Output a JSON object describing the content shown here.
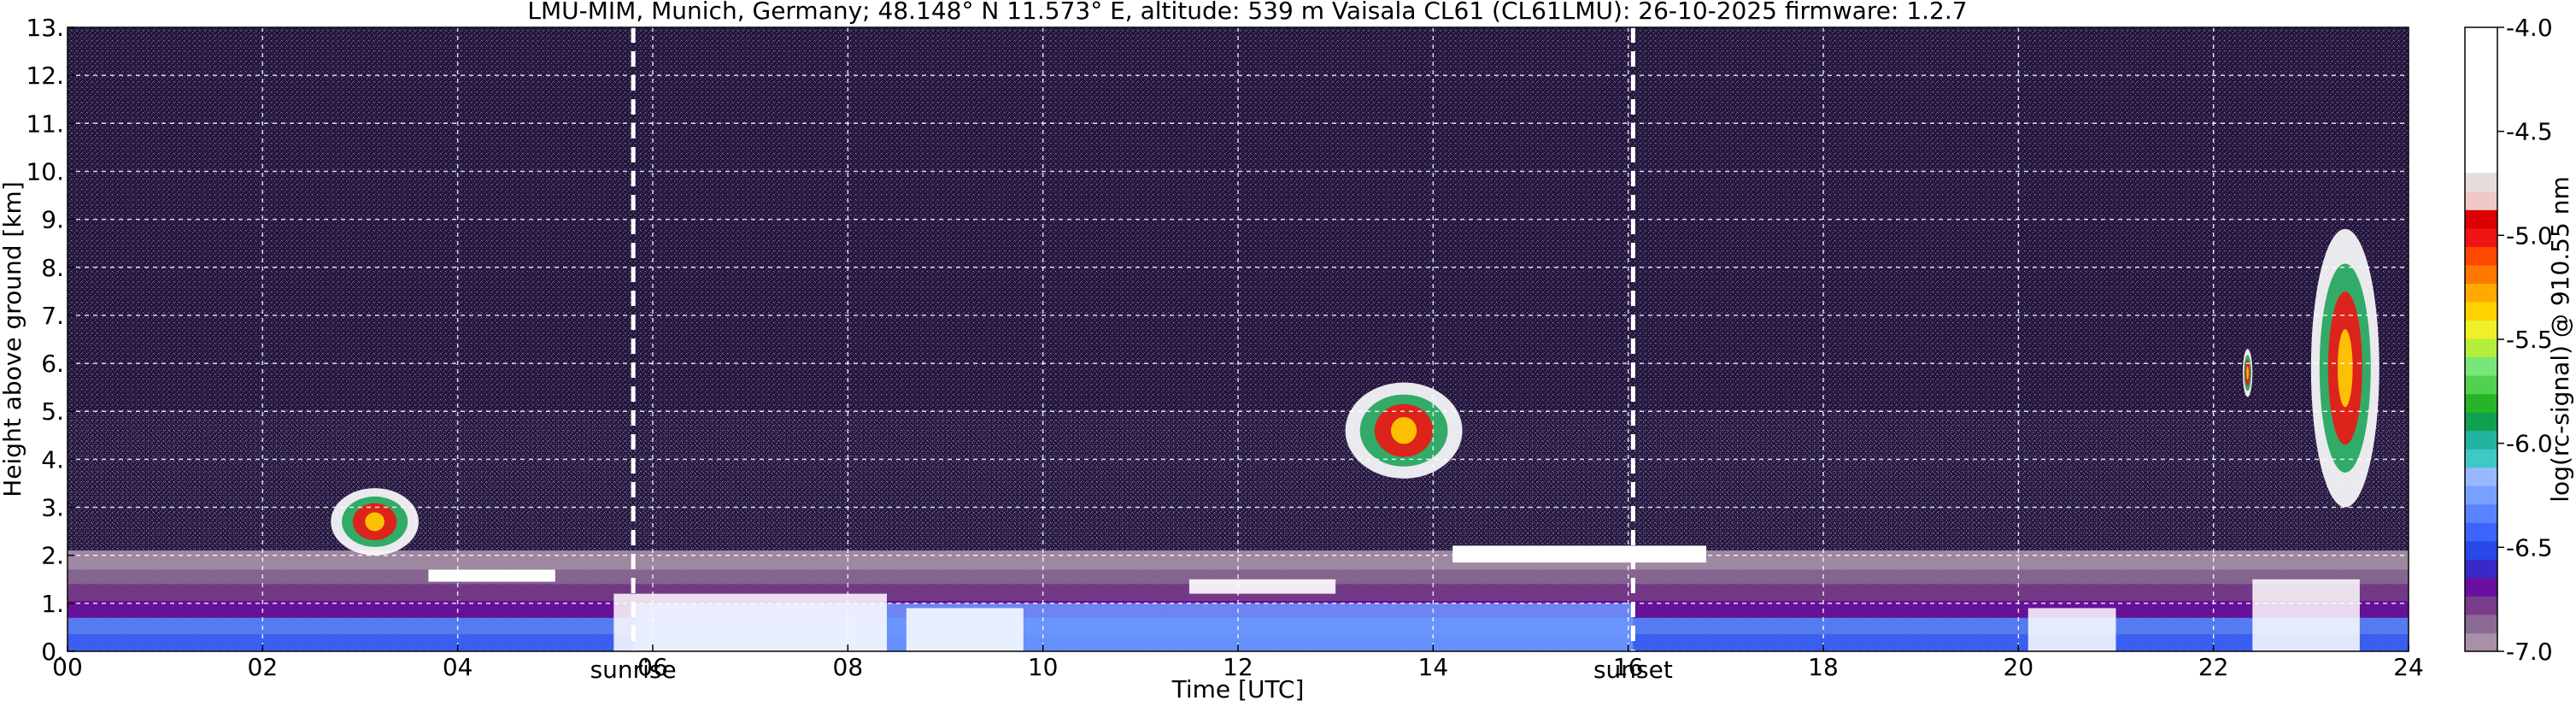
{
  "chart_data": {
    "type": "heatmap",
    "title": "LMU-MIM, Munich, Germany; 48.148° N 11.573° E, altitude: 539 m    Vaisala CL61 (CL61LMU): 26-10-2025    firmware: 1.2.7",
    "xlabel": "Time [UTC]",
    "ylabel": "Height above ground [km]",
    "xlim": [
      0,
      24
    ],
    "ylim": [
      0,
      13
    ],
    "grid": true,
    "x_ticks": [
      0,
      2,
      4,
      6,
      8,
      10,
      12,
      14,
      16,
      18,
      20,
      22,
      24
    ],
    "x_tick_labels": [
      "00",
      "02",
      "04",
      "06",
      "08",
      "10",
      "12",
      "14",
      "16",
      "18",
      "20",
      "22",
      "24"
    ],
    "y_ticks": [
      0,
      1,
      2,
      3,
      4,
      5,
      6,
      7,
      8,
      9,
      10,
      11,
      12,
      13
    ],
    "y_tick_labels": [
      "0.",
      "1.",
      "2.",
      "3.",
      "4.",
      "5.",
      "6.",
      "7.",
      "8.",
      "9.",
      "10.",
      "11.",
      "12.",
      "13."
    ],
    "markers": [
      {
        "label": "sunrise",
        "time": 5.8
      },
      {
        "label": "sunset",
        "time": 16.05
      }
    ],
    "colorbar": {
      "label": "log(rc-signal) @ 910.55 nm",
      "range": [
        -7.0,
        -4.0
      ],
      "ticks": [
        -7.0,
        -6.5,
        -6.0,
        -5.5,
        -5.0,
        -4.5,
        -4.0
      ],
      "tick_labels": [
        "-7.0",
        "-6.5",
        "-6.0",
        "-5.5",
        "-5.0",
        "-4.5",
        "-4.0"
      ],
      "colors": [
        "#a890a8",
        "#8c6a96",
        "#7a3c8c",
        "#6a10a0",
        "#3a28c8",
        "#2848e8",
        "#3c64ff",
        "#5a82ff",
        "#7aa0ff",
        "#98b8ff",
        "#40c8c8",
        "#20b4a0",
        "#10a050",
        "#28b428",
        "#50d250",
        "#78e678",
        "#b4ee3c",
        "#f0f028",
        "#ffd200",
        "#ffaa00",
        "#ff7800",
        "#ff4800",
        "#f01414",
        "#dc0000",
        "#f0c8c8",
        "#e6dcdc",
        "#ffffff"
      ]
    },
    "features": [
      {
        "name": "boundary layer",
        "time_range": [
          0,
          24
        ],
        "height_range": [
          0,
          2.1
        ]
      },
      {
        "name": "cloud layer",
        "time_range": [
          13.1,
          14.3
        ],
        "height_range": [
          3.6,
          5.6
        ]
      },
      {
        "name": "cloud",
        "time_range": [
          2.7,
          3.6
        ],
        "height_range": [
          2.0,
          3.4
        ]
      },
      {
        "name": "cloud",
        "time_range": [
          22.3,
          22.4
        ],
        "height_range": [
          5.3,
          6.3
        ]
      },
      {
        "name": "cloud layer",
        "time_range": [
          23.0,
          23.7
        ],
        "height_range": [
          3.0,
          8.8
        ]
      }
    ],
    "colors": {
      "background": "#24163c",
      "lowest_layer": "#5a82ff",
      "boundary": "#ffffff",
      "cloud": "#f01414"
    }
  }
}
